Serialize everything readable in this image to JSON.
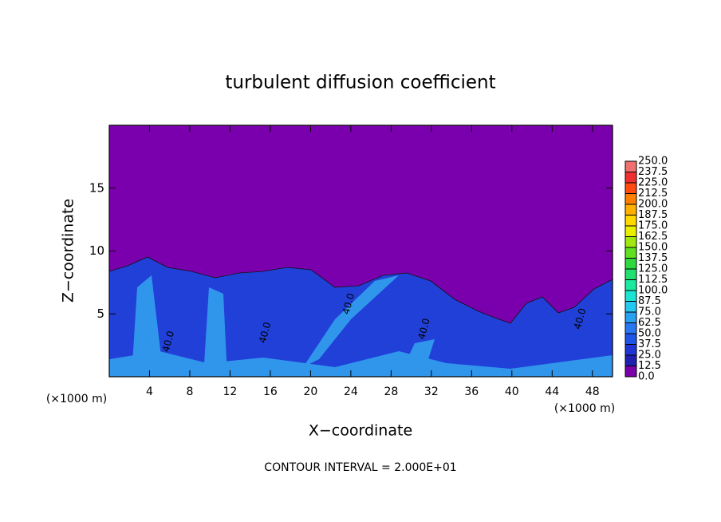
{
  "chart_data": {
    "type": "contour",
    "title": "turbulent diffusion coefficient",
    "xlabel": "X−coordinate",
    "ylabel": "Z−coordinate",
    "x_unit_left": "(×1000 m)",
    "x_unit_right": "(×1000 m)",
    "footer": "CONTOUR INTERVAL = 2.000E+01",
    "xlim": [
      0,
      50
    ],
    "ylim": [
      0,
      20
    ],
    "xticks": [
      4,
      8,
      12,
      16,
      20,
      24,
      28,
      32,
      36,
      40,
      44,
      48
    ],
    "yticks": [
      5,
      10,
      15
    ],
    "contour_labels": [
      {
        "value": 40,
        "label": "40.0",
        "x": 5.9,
        "y": 2.8
      },
      {
        "value": 40,
        "label": "40.0",
        "x": 15.5,
        "y": 3.5
      },
      {
        "value": 40,
        "label": "40.0",
        "x": 23.8,
        "y": 5.8
      },
      {
        "value": 40,
        "label": "40.0",
        "x": 31.3,
        "y": 3.8
      },
      {
        "value": 40,
        "label": "40.0",
        "x": 46.8,
        "y": 4.6
      }
    ],
    "levels": [
      {
        "value": 0,
        "label": "0.0"
      },
      {
        "value": 12.5,
        "label": "12.5"
      },
      {
        "value": 25,
        "label": "25.0"
      },
      {
        "value": 37.5,
        "label": "37.5"
      },
      {
        "value": 50,
        "label": "50.0"
      },
      {
        "value": 62.5,
        "label": "62.5"
      },
      {
        "value": 75,
        "label": "75.0"
      },
      {
        "value": 87.5,
        "label": "87.5"
      },
      {
        "value": 100,
        "label": "100.0"
      },
      {
        "value": 112.5,
        "label": "112.5"
      },
      {
        "value": 125,
        "label": "125.0"
      },
      {
        "value": 137.5,
        "label": "137.5"
      },
      {
        "value": 150,
        "label": "150.0"
      },
      {
        "value": 162.5,
        "label": "162.5"
      },
      {
        "value": 175,
        "label": "175.0"
      },
      {
        "value": 187.5,
        "label": "187.5"
      },
      {
        "value": 200,
        "label": "200.0"
      },
      {
        "value": 212.5,
        "label": "212.5"
      },
      {
        "value": 225,
        "label": "225.0"
      },
      {
        "value": 237.5,
        "label": "237.5"
      },
      {
        "value": 250,
        "label": "250.0"
      }
    ],
    "level_colors": [
      "#7a00aa",
      "#1f1fb0",
      "#1f35d4",
      "#1f55e6",
      "#2a77f2",
      "#2aa0f0",
      "#25c8f0",
      "#1de3d2",
      "#1ce8a0",
      "#20e070",
      "#30d840",
      "#60e020",
      "#a0e810",
      "#e8f000",
      "#ffd800",
      "#ffb000",
      "#ff8000",
      "#ff4a10",
      "#f03030",
      "#f07070"
    ]
  }
}
